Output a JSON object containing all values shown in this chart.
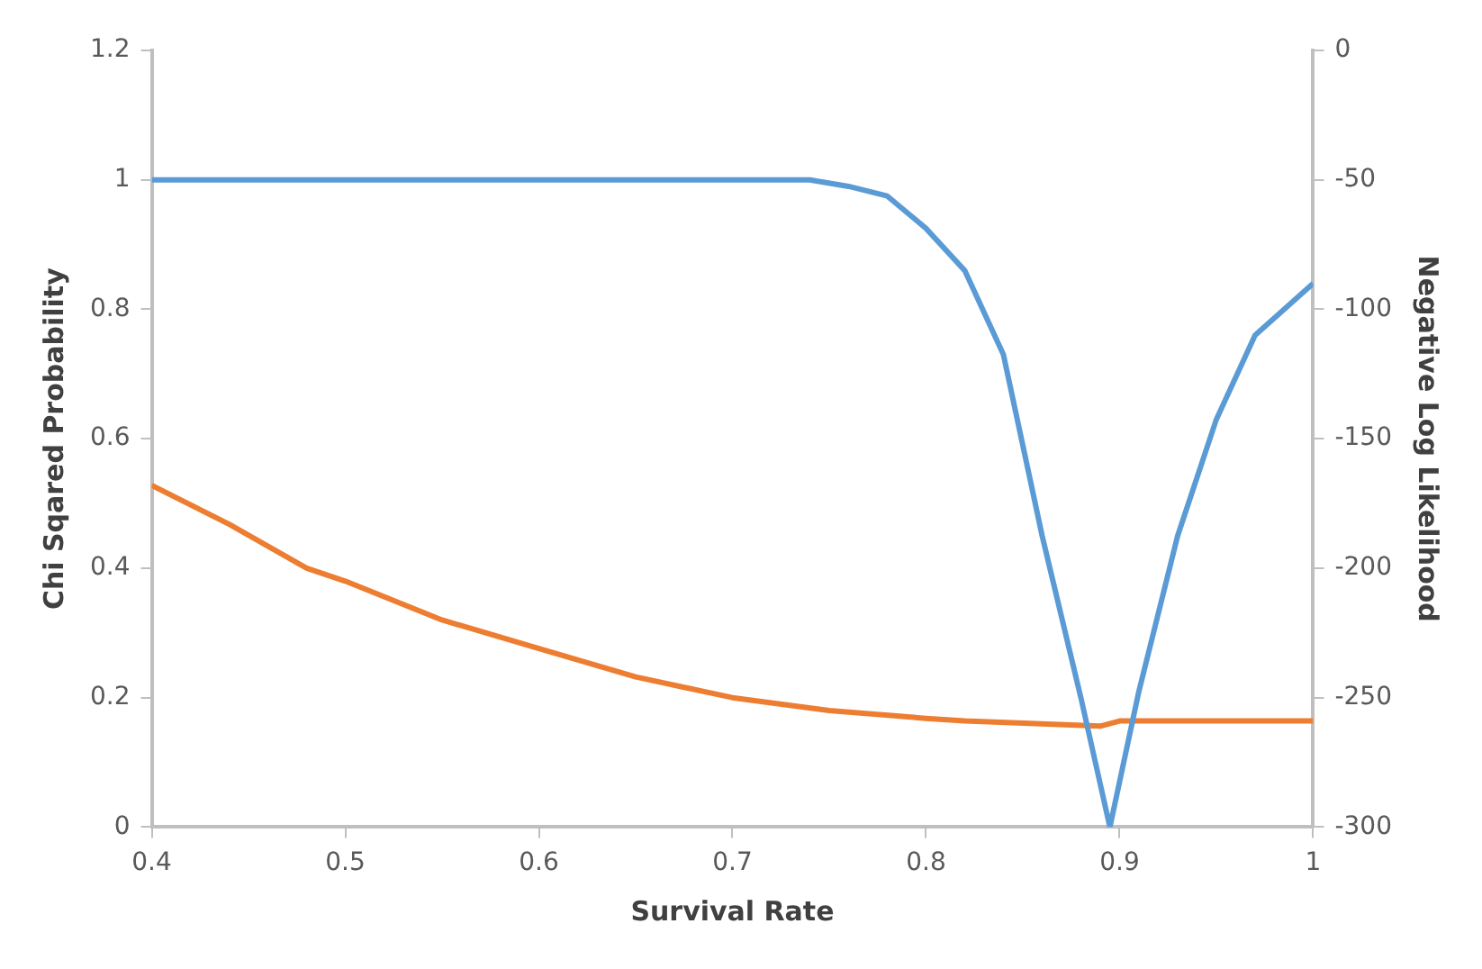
{
  "chart_data": {
    "type": "line",
    "xlabel": "Survival Rate",
    "ylabel": "Chi Sqared Probability",
    "y2label": "Negative Log Likelihood",
    "xlim": [
      0.4,
      1
    ],
    "xticks": [
      0.4,
      0.5,
      0.6,
      0.7,
      0.8,
      0.9,
      1
    ],
    "ylim": [
      0,
      1.2
    ],
    "yticks": [
      0,
      0.2,
      0.4,
      0.6,
      0.8,
      1,
      1.2
    ],
    "y2lim": [
      -300,
      0
    ],
    "y2ticks": [
      -300,
      -250,
      -200,
      -150,
      -100,
      -50,
      0
    ],
    "grid": false,
    "legend": false,
    "marker": "none",
    "line_style": "solid",
    "series": [
      {
        "color": "#5b9bd5",
        "x": [
          0.4,
          0.5,
          0.6,
          0.7,
          0.74,
          0.76,
          0.78,
          0.8,
          0.82,
          0.84,
          0.86,
          0.88,
          0.895,
          0.91,
          0.93,
          0.95,
          0.97,
          1.0
        ],
        "values": [
          1,
          1,
          1,
          1,
          1,
          0.99,
          0.975,
          0.925,
          0.86,
          0.73,
          0.45,
          0.2,
          0,
          0.21,
          0.45,
          0.63,
          0.76,
          0.84
        ]
      },
      {
        "color": "#ed7d31",
        "axis": "y2",
        "x": [
          0.4,
          0.44,
          0.48,
          0.5,
          0.55,
          0.6,
          0.65,
          0.7,
          0.75,
          0.8,
          0.82,
          0.89,
          0.9,
          1.0
        ],
        "values": [
          -168,
          -183,
          -200,
          -205,
          -220,
          -231,
          -242,
          -250,
          -255,
          -258,
          -259,
          -261,
          -259,
          -259
        ]
      }
    ]
  }
}
